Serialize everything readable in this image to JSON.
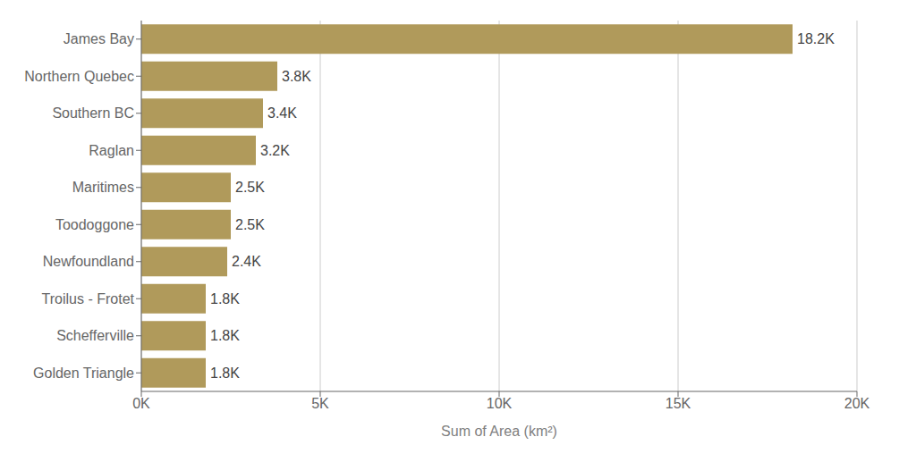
{
  "chart_data": {
    "type": "bar",
    "orientation": "horizontal",
    "categories": [
      "Golden Triangle",
      "Schefferville",
      "Troilus - Frotet",
      "Newfoundland",
      "Toodoggone",
      "Maritimes",
      "Raglan",
      "Southern BC",
      "Northern Quebec",
      "James Bay"
    ],
    "values": [
      1800,
      1800,
      1800,
      2400,
      2500,
      2500,
      3200,
      3400,
      3800,
      18200
    ],
    "value_labels": [
      "1.8K",
      "1.8K",
      "1.8K",
      "2.4K",
      "2.5K",
      "2.5K",
      "3.2K",
      "3.4K",
      "3.8K",
      "18.2K"
    ],
    "data_labels": true,
    "color": "#b09a5b",
    "xlabel": "Sum of Area (km²)",
    "xlim": [
      0,
      20000
    ],
    "xticks": [
      {
        "value": 0,
        "label": "0K"
      },
      {
        "value": 5000,
        "label": "5K"
      },
      {
        "value": 10000,
        "label": "10K"
      },
      {
        "value": 15000,
        "label": "15K"
      },
      {
        "value": 20000,
        "label": "20K"
      }
    ],
    "grid": true
  }
}
